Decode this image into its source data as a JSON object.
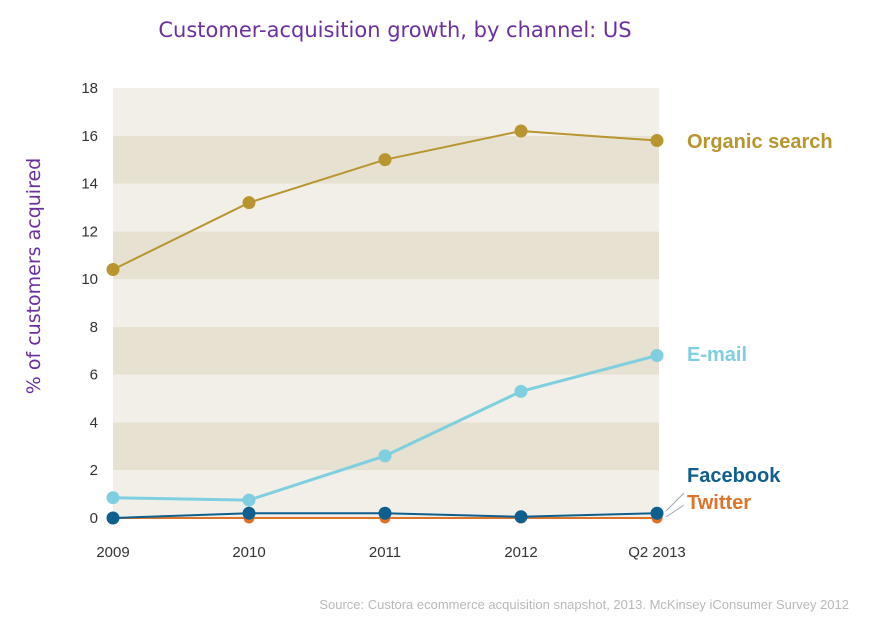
{
  "chart_data": {
    "type": "line",
    "title": "Customer-acquisition  growth, by channel: US",
    "xlabel": "",
    "ylabel": "% of customers acquired",
    "categories": [
      "2009",
      "2010",
      "2011",
      "2012",
      "Q2 2013"
    ],
    "ylim": [
      0,
      18
    ],
    "yticks": [
      0,
      2,
      4,
      6,
      8,
      10,
      12,
      14,
      16,
      18
    ],
    "grid": "horizontal bands",
    "series": [
      {
        "name": "Organic search",
        "color": "#b8952f",
        "values": [
          10.4,
          13.2,
          15.0,
          16.2,
          15.8
        ]
      },
      {
        "name": "E-mail",
        "color": "#7fcfe0",
        "values": [
          0.85,
          0.75,
          2.6,
          5.3,
          6.8
        ]
      },
      {
        "name": "Facebook",
        "color": "#0e5f8e",
        "values": [
          0.0,
          0.2,
          0.2,
          0.05,
          0.2
        ]
      },
      {
        "name": "Twitter",
        "color": "#e0722a",
        "values": [
          0.0,
          0.0,
          0.0,
          0.0,
          0.0
        ]
      }
    ]
  },
  "source": "Source: Custora ecommerce acquisition snapshot, 2013. McKinsey iConsumer Survey 2012"
}
